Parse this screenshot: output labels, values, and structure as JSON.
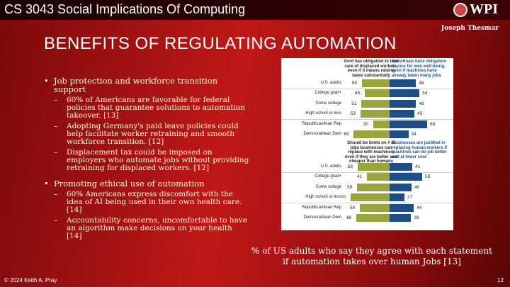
{
  "header": {
    "course": "CS 3043 Social Implications Of Computing",
    "logo_text": "WPI",
    "author": "Joseph Thesmar"
  },
  "title": "BENEFITS OF REGULATING AUTOMATION",
  "bullets": [
    {
      "text": "Job protection and workforce transition support",
      "sub": [
        "60% of Americans are favorable for federal policies that guarantee solutions to automation takeover. [13]",
        "Adopting Germany's paid leave policies could help facilitate worker retraining and smooth workforce transition. [12]",
        "Displacement tax could be imposed on employers who automate jobs without providing retraining for displaced workers. [12]"
      ]
    },
    {
      "text": "Promoting ethical use of automation",
      "sub": [
        "60% Americans express discomfort with the idea of AI being used in their own health care. [14]",
        "Accountability concerns, uncomfortable to have an algorithm make decisions on your health [14]"
      ]
    }
  ],
  "chart_data": [
    {
      "type": "bar",
      "categories": [
        "U.S. adults",
        "College grad+",
        "Some college",
        "High school or less",
        "Republican/lean Rep",
        "Democrat/lean Dem"
      ],
      "series": [
        {
          "name": "Govt has obligation to take care of displaced workers, even if it means raising taxes substantially",
          "values": [
            50,
            45,
            51,
            53,
            30,
            65
          ],
          "color": "#9aa53c"
        },
        {
          "name": "Individuals have obligation to care for own well-being, even if machines have already taken many jobs",
          "values": [
            48,
            54,
            48,
            45,
            68,
            34
          ],
          "color": "#1f4e86"
        }
      ]
    },
    {
      "type": "bar",
      "categories": [
        "U.S. adults",
        "College grad+",
        "Some college",
        "High school or less",
        "Republican/lean Rep",
        "Democrat/lean Dem"
      ],
      "series": [
        {
          "name": "Should be limits on # of jobs businesses can replace with machines, even if they are better and cheaper than humans",
          "values": [
            58,
            41,
            59,
            70,
            54,
            60
          ],
          "color": "#9aa53c"
        },
        {
          "name": "Businesses are justified in replacing human workers if machines can do job better and at lower cost",
          "values": [
            41,
            59,
            40,
            27,
            44,
            39
          ],
          "color": "#1f4e86"
        }
      ]
    }
  ],
  "caption": "% of US adults who say they agree with each statement if automation takes over human Jobs [13]",
  "footer": {
    "copyright": "© 2024 Keith A. Pray",
    "page": "12"
  }
}
